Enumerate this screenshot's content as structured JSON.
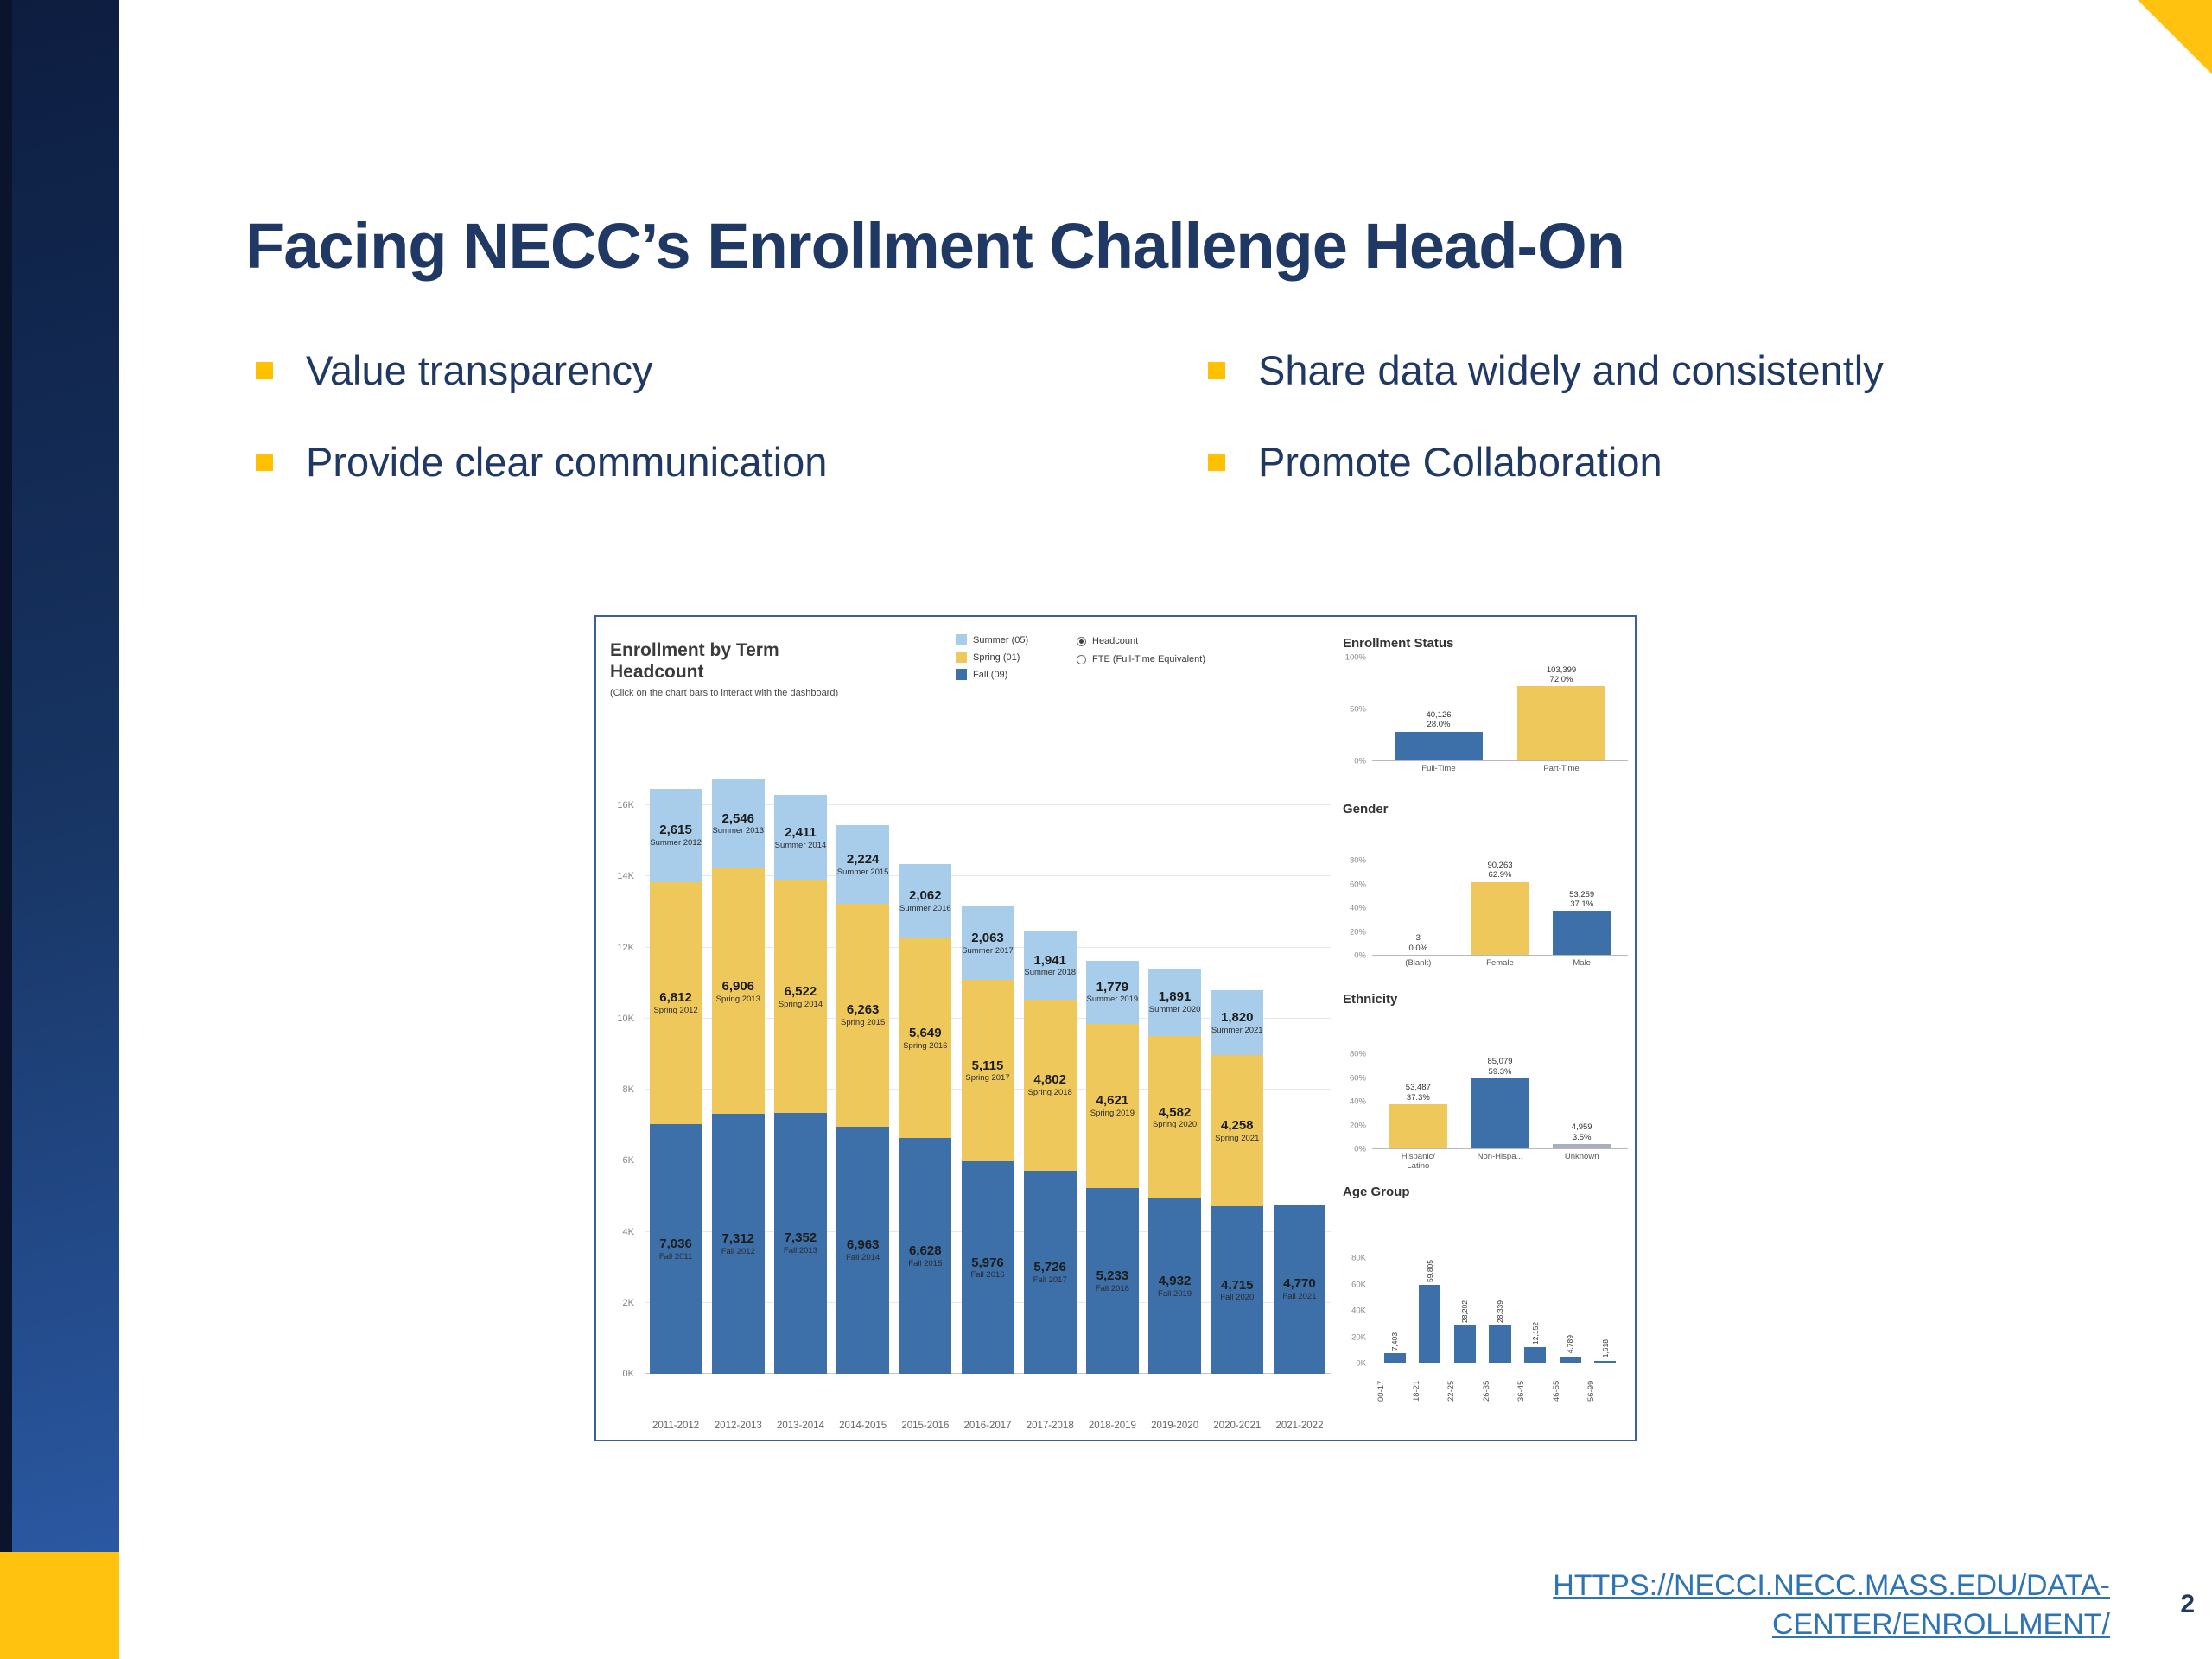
{
  "slide": {
    "title": "Facing NECC’s Enrollment Challenge Head-On",
    "bullets_left": [
      "Value transparency",
      "Provide clear communication"
    ],
    "bullets_right": [
      "Share data widely and consistently",
      "Promote Collaboration"
    ],
    "source_link": {
      "line1": "HTTPS://NECCI.NECC.MASS.EDU/DATA-",
      "line2": "CENTER/ENROLLMENT/"
    },
    "page_number": "2"
  },
  "colors": {
    "title_navy": "#1F3864",
    "bullet_yellow": "#FFC000",
    "accent_yellow": "#FFC20E",
    "fall_blue": "#3D6FA8",
    "spring_yellow": "#EFC85C",
    "summer_light_blue": "#A8CDEA",
    "link_blue": "#2E74B5"
  },
  "dashboard": {
    "title_line1": "Enrollment by Term",
    "title_line2": "Headcount",
    "subtitle": "(Click on the chart bars to interact with the dashboard)",
    "legend": [
      {
        "label": "Summer (05)",
        "color": "#A8CDEA"
      },
      {
        "label": "Spring (01)",
        "color": "#EFC85C"
      },
      {
        "label": "Fall (09)",
        "color": "#3D6FA8"
      }
    ],
    "radios": [
      {
        "label": "Headcount",
        "selected": true
      },
      {
        "label": "FTE (Full-Time Equivalent)",
        "selected": false
      }
    ]
  },
  "chart_data": [
    {
      "id": "enrollment_by_term",
      "type": "bar",
      "stacked": true,
      "title": "Enrollment by Term Headcount",
      "xlabel": "",
      "ylabel": "Headcount",
      "ylim": [
        0,
        16000
      ],
      "y_ticks": [
        "16K",
        "14K",
        "12K",
        "10K",
        "8K",
        "6K",
        "4K",
        "2K",
        "0K"
      ],
      "grid": true,
      "legend_position": "top",
      "categories": [
        "2011-2012",
        "2012-2013",
        "2013-2014",
        "2014-2015",
        "2015-2016",
        "2016-2017",
        "2017-2018",
        "2018-2019",
        "2019-2020",
        "2020-2021",
        "2021-2022"
      ],
      "series": [
        {
          "name": "Fall (09)",
          "color": "#3D6FA8",
          "values": [
            7036,
            7312,
            7352,
            6963,
            6628,
            5976,
            5726,
            5233,
            4932,
            4715,
            4770
          ],
          "labels": [
            "Fall 2011",
            "Fall 2012",
            "Fall 2013",
            "Fall 2014",
            "Fall 2015",
            "Fall 2016",
            "Fall 2017",
            "Fall 2018",
            "Fall 2019",
            "Fall 2020",
            "Fall 2021"
          ]
        },
        {
          "name": "Spring (01)",
          "color": "#EFC85C",
          "values": [
            6812,
            6906,
            6522,
            6263,
            5649,
            5115,
            4802,
            4621,
            4582,
            4258,
            null
          ],
          "labels": [
            "Spring 2012",
            "Spring 2013",
            "Spring 2014",
            "Spring 2015",
            "Spring 2016",
            "Spring 2017",
            "Spring 2018",
            "Spring 2019",
            "Spring 2020",
            "Spring 2021",
            null
          ]
        },
        {
          "name": "Summer (05)",
          "color": "#A8CDEA",
          "values": [
            2615,
            2546,
            2411,
            2224,
            2062,
            2063,
            1941,
            1779,
            1891,
            1820,
            null
          ],
          "labels": [
            "Summer 2012",
            "Summer 2013",
            "Summer 2014",
            "Summer 2015",
            "Summer 2016",
            "Summer 2017",
            "Summer 2018",
            "Summer 2019",
            "Summer 2020",
            "Summer 2021",
            null
          ]
        }
      ]
    },
    {
      "id": "enrollment_status",
      "type": "bar",
      "title": "Enrollment Status",
      "y_ticks": [
        "100%",
        "50%",
        "0%"
      ],
      "ymax": 100,
      "rotated_labels": false,
      "bars": [
        {
          "label": "Full-Time",
          "value": 28.0,
          "value_label": "40,126",
          "pct_label": "28.0%",
          "color": "#3D6FA8"
        },
        {
          "label": "Part-Time",
          "value": 72.0,
          "value_label": "103,399",
          "pct_label": "72.0%",
          "color": "#EFC85C"
        }
      ]
    },
    {
      "id": "gender",
      "type": "bar",
      "title": "Gender",
      "y_ticks": [
        "80%",
        "60%",
        "40%",
        "20%",
        "0%"
      ],
      "ymax": 80,
      "rotated_labels": false,
      "bars": [
        {
          "label": "(Blank)",
          "value": 0.0,
          "value_label": "3",
          "pct_label": "0.0%",
          "color": "#3D6FA8"
        },
        {
          "label": "Female",
          "value": 62.9,
          "value_label": "90,263",
          "pct_label": "62.9%",
          "color": "#EFC85C"
        },
        {
          "label": "Male",
          "value": 37.1,
          "value_label": "53,259",
          "pct_label": "37.1%",
          "color": "#3D6FA8"
        }
      ]
    },
    {
      "id": "ethnicity",
      "type": "bar",
      "title": "Ethnicity",
      "y_ticks": [
        "80%",
        "60%",
        "40%",
        "20%",
        "0%"
      ],
      "ymax": 80,
      "rotated_labels": false,
      "bars": [
        {
          "label": "Hispanic/\nLatino",
          "value": 37.3,
          "value_label": "53,487",
          "pct_label": "37.3%",
          "color": "#EFC85C"
        },
        {
          "label": "Non-Hispa...",
          "value": 59.3,
          "value_label": "85,079",
          "pct_label": "59.3%",
          "color": "#3D6FA8"
        },
        {
          "label": "Unknown",
          "value": 3.5,
          "value_label": "4,959",
          "pct_label": "3.5%",
          "color": "#A9B0BC"
        }
      ]
    },
    {
      "id": "age_group",
      "type": "bar",
      "title": "Age Group",
      "y_ticks": [
        "80K",
        "60K",
        "40K",
        "20K",
        "0K"
      ],
      "ymax": 80000,
      "rotated_labels": true,
      "bars": [
        {
          "label": "00-17",
          "value": 7403,
          "value_label": "7,403",
          "color": "#3D6FA8"
        },
        {
          "label": "18-21",
          "value": 59805,
          "value_label": "59,805",
          "color": "#3D6FA8"
        },
        {
          "label": "22-25",
          "value": 28202,
          "value_label": "28,202",
          "color": "#3D6FA8"
        },
        {
          "label": "26-35",
          "value": 28339,
          "value_label": "28,339",
          "color": "#3D6FA8"
        },
        {
          "label": "36-45",
          "value": 12152,
          "value_label": "12,152",
          "color": "#3D6FA8"
        },
        {
          "label": "46-55",
          "value": 4789,
          "value_label": "4,789",
          "color": "#3D6FA8"
        },
        {
          "label": "56-99",
          "value": 1618,
          "value_label": "1,618",
          "color": "#3D6FA8"
        }
      ]
    }
  ]
}
